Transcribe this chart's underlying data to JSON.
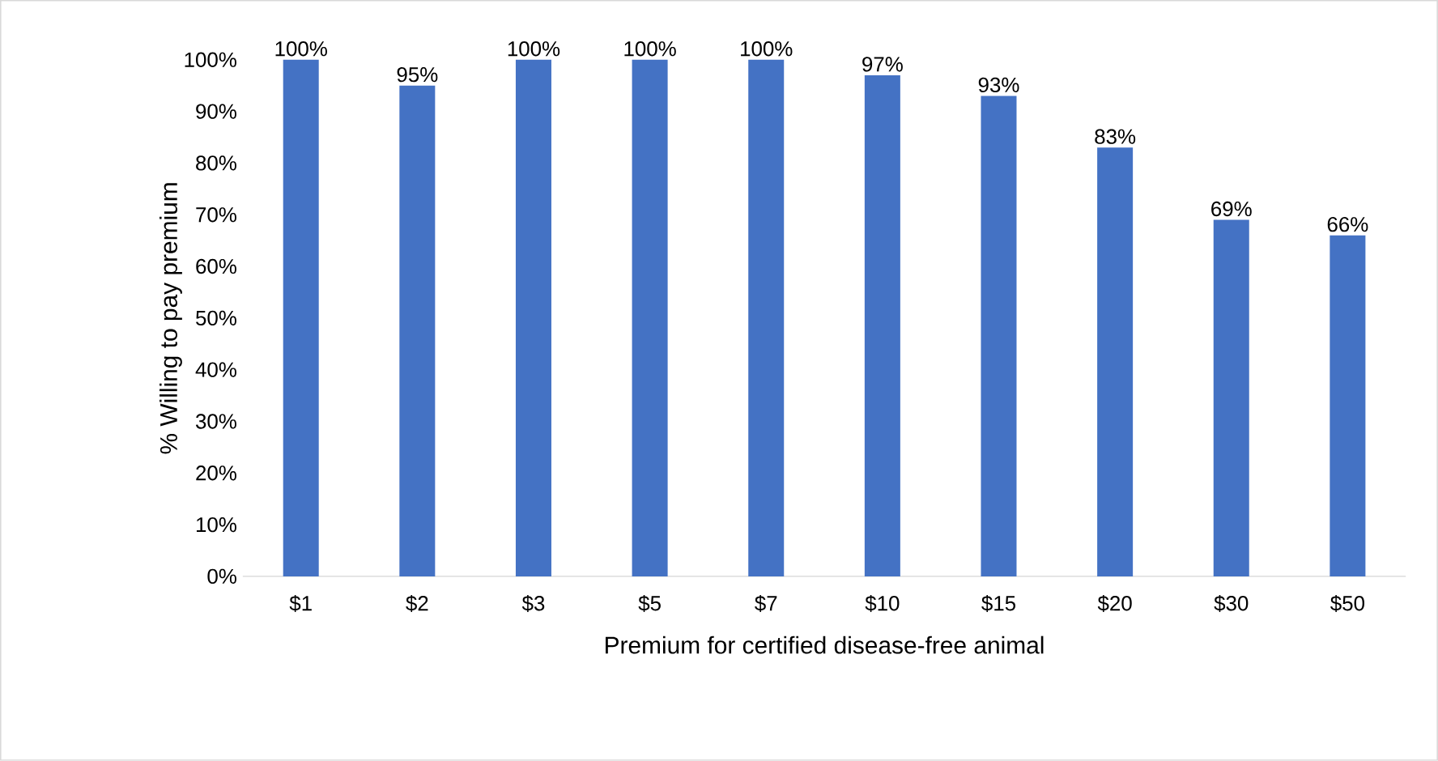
{
  "chart_data": {
    "type": "bar",
    "xlabel": "Premium for certified disease-free animal",
    "ylabel": "% Willing to pay premium",
    "categories": [
      "$1",
      "$2",
      "$3",
      "$5",
      "$7",
      "$10",
      "$15",
      "$20",
      "$30",
      "$50"
    ],
    "values": [
      100,
      95,
      100,
      100,
      100,
      97,
      93,
      83,
      69,
      66
    ],
    "value_labels": [
      "100%",
      "95%",
      "100%",
      "100%",
      "100%",
      "97%",
      "93%",
      "83%",
      "69%",
      "66%"
    ],
    "color": "#4472c4",
    "ylim": [
      0,
      100
    ],
    "yticks": [
      {
        "value": 0,
        "label": "0%"
      },
      {
        "value": 10,
        "label": "10%"
      },
      {
        "value": 20,
        "label": "20%"
      },
      {
        "value": 30,
        "label": "30%"
      },
      {
        "value": 40,
        "label": "40%"
      },
      {
        "value": 50,
        "label": "50%"
      },
      {
        "value": 60,
        "label": "60%"
      },
      {
        "value": 70,
        "label": "70%"
      },
      {
        "value": 80,
        "label": "80%"
      },
      {
        "value": 90,
        "label": "90%"
      },
      {
        "value": 100,
        "label": "100%"
      }
    ]
  }
}
